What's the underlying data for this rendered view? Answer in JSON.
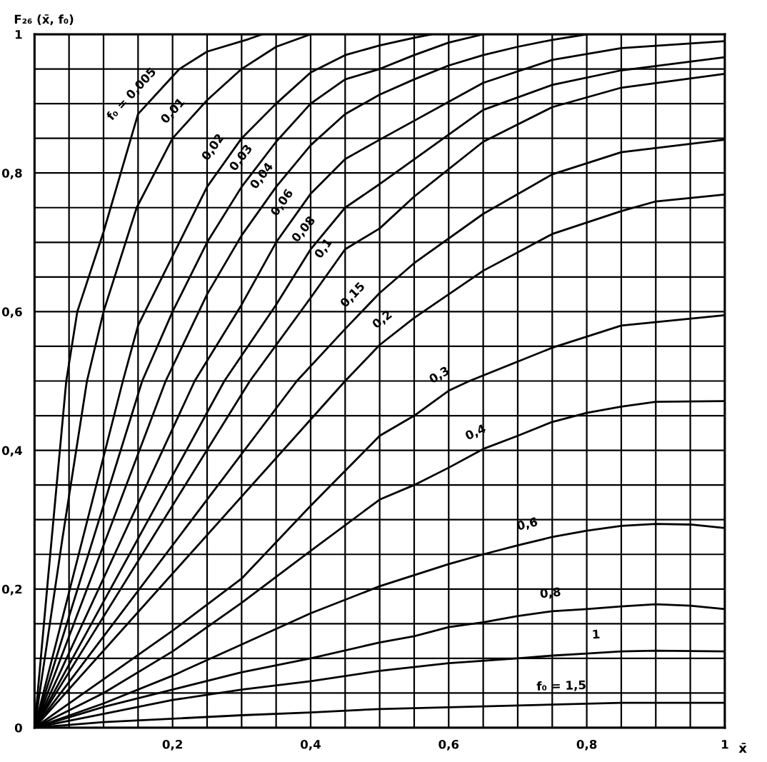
{
  "chart_data": {
    "type": "line",
    "xlabel": "x̄",
    "ylabel": "F₂₆ (x̄, f₀)",
    "xlim": [
      0,
      1
    ],
    "ylim": [
      0,
      1
    ],
    "xticks": [
      {
        "value": 0,
        "label": null
      },
      {
        "value": 0.05,
        "label": null
      },
      {
        "value": 0.1,
        "label": null
      },
      {
        "value": 0.15,
        "label": null
      },
      {
        "value": 0.2,
        "label": "0,2"
      },
      {
        "value": 0.25,
        "label": null
      },
      {
        "value": 0.3,
        "label": null
      },
      {
        "value": 0.35,
        "label": null
      },
      {
        "value": 0.4,
        "label": "0,4"
      },
      {
        "value": 0.45,
        "label": null
      },
      {
        "value": 0.5,
        "label": null
      },
      {
        "value": 0.55,
        "label": null
      },
      {
        "value": 0.6,
        "label": "0,6"
      },
      {
        "value": 0.65,
        "label": null
      },
      {
        "value": 0.7,
        "label": null
      },
      {
        "value": 0.75,
        "label": null
      },
      {
        "value": 0.8,
        "label": "0,8"
      },
      {
        "value": 0.85,
        "label": null
      },
      {
        "value": 0.9,
        "label": null
      },
      {
        "value": 0.95,
        "label": null
      },
      1
    ],
    "yticks": [
      0,
      {
        "value": 0.05,
        "label": null
      },
      {
        "value": 0.1,
        "label": null
      },
      {
        "value": 0.15,
        "label": null
      },
      {
        "value": 0.2,
        "label": "0,2"
      },
      {
        "value": 0.25,
        "label": null
      },
      {
        "value": 0.3,
        "label": null
      },
      {
        "value": 0.35,
        "label": null
      },
      {
        "value": 0.4,
        "label": "0,4"
      },
      {
        "value": 0.45,
        "label": null
      },
      {
        "value": 0.5,
        "label": null
      },
      {
        "value": 0.55,
        "label": null
      },
      {
        "value": 0.6,
        "label": "0,6"
      },
      {
        "value": 0.65,
        "label": null
      },
      {
        "value": 0.7,
        "label": null
      },
      {
        "value": 0.75,
        "label": null
      },
      {
        "value": 0.8,
        "label": "0,8"
      },
      {
        "value": 0.85,
        "label": null
      },
      {
        "value": 0.9,
        "label": null
      },
      {
        "value": 0.95,
        "label": null
      },
      1
    ],
    "grid": true,
    "marker": "none",
    "line_style": "solid",
    "series": [
      {
        "color": "#000000",
        "x": [
          0,
          0.02,
          0.046,
          0.062,
          0.1,
          0.125,
          0.15,
          0.21,
          0.25,
          0.31,
          0.33
        ],
        "values": [
          0,
          0.22,
          0.5,
          0.6,
          0.715,
          0.8,
          0.885,
          0.95,
          0.975,
          0.993,
          1
        ]
      },
      {
        "color": "#000000",
        "x": [
          0,
          0.04,
          0.076,
          0.1,
          0.148,
          0.2,
          0.25,
          0.3,
          0.35,
          0.4
        ],
        "values": [
          0,
          0.27,
          0.5,
          0.6,
          0.75,
          0.85,
          0.905,
          0.95,
          0.982,
          1
        ]
      },
      {
        "color": "#000000",
        "x": [
          0,
          0.128,
          0.15,
          0.2,
          0.25,
          0.3,
          0.35,
          0.4,
          0.45,
          0.5,
          0.55,
          0.575
        ],
        "values": [
          0,
          0.5,
          0.58,
          0.68,
          0.78,
          0.85,
          0.9,
          0.945,
          0.97,
          0.984,
          0.995,
          1
        ]
      },
      {
        "color": "#000000",
        "x": [
          0,
          0.156,
          0.2,
          0.25,
          0.3,
          0.35,
          0.4,
          0.45,
          0.5,
          0.55,
          0.6,
          0.65
        ],
        "values": [
          0,
          0.5,
          0.6,
          0.7,
          0.78,
          0.845,
          0.9,
          0.935,
          0.95,
          0.97,
          0.988,
          1
        ]
      },
      {
        "color": "#000000",
        "x": [
          0,
          0.19,
          0.25,
          0.3,
          0.35,
          0.4,
          0.45,
          0.5,
          0.55,
          0.6,
          0.65,
          0.7,
          0.75,
          0.8
        ],
        "values": [
          0,
          0.5,
          0.625,
          0.71,
          0.78,
          0.84,
          0.885,
          0.913,
          0.935,
          0.955,
          0.97,
          0.982,
          0.992,
          1
        ]
      },
      {
        "color": "#000000",
        "x": [
          0,
          0.232,
          0.3,
          0.35,
          0.4,
          0.45,
          0.5,
          0.65,
          0.75,
          0.85,
          1
        ],
        "values": [
          0,
          0.5,
          0.61,
          0.7,
          0.77,
          0.82,
          0.848,
          0.93,
          0.963,
          0.98,
          0.99
        ]
      },
      {
        "color": "#000000",
        "x": [
          0,
          0.275,
          0.35,
          0.4,
          0.45,
          0.5,
          0.65,
          0.75,
          0.85,
          1
        ],
        "values": [
          0,
          0.5,
          0.61,
          0.69,
          0.75,
          0.784,
          0.891,
          0.927,
          0.948,
          0.967
        ]
      },
      {
        "color": "#000000",
        "x": [
          0,
          0.312,
          0.4,
          0.45,
          0.5,
          0.55,
          0.65,
          0.75,
          0.85,
          1
        ],
        "values": [
          0,
          0.5,
          0.62,
          0.69,
          0.72,
          0.766,
          0.845,
          0.895,
          0.923,
          0.943
        ]
      },
      {
        "color": "#000000",
        "x": [
          0,
          0.38,
          0.45,
          0.5,
          0.55,
          0.65,
          0.75,
          0.85,
          1
        ],
        "values": [
          0,
          0.5,
          0.575,
          0.627,
          0.67,
          0.741,
          0.798,
          0.83,
          0.848
        ]
      },
      {
        "color": "#000000",
        "x": [
          0,
          0.45,
          0.5,
          0.55,
          0.65,
          0.75,
          0.85,
          0.9,
          1
        ],
        "values": [
          0,
          0.5,
          0.552,
          0.591,
          0.659,
          0.712,
          0.745,
          0.759,
          0.769
        ]
      },
      {
        "color": "#000000",
        "x": [
          0,
          0.1,
          0.2,
          0.3,
          0.4,
          0.5,
          0.55,
          0.6,
          0.63,
          0.75,
          0.85,
          1
        ],
        "values": [
          0,
          0.07,
          0.14,
          0.215,
          0.32,
          0.421,
          0.45,
          0.486,
          0.5,
          0.548,
          0.58,
          0.595
        ]
      },
      {
        "color": "#000000",
        "x": [
          0,
          0.1,
          0.2,
          0.3,
          0.4,
          0.5,
          0.55,
          0.6,
          0.65,
          0.7,
          0.75,
          0.8,
          0.85,
          0.9,
          1
        ],
        "values": [
          0,
          0.05,
          0.11,
          0.18,
          0.255,
          0.329,
          0.35,
          0.375,
          0.402,
          0.421,
          0.441,
          0.454,
          0.463,
          0.47,
          0.471
        ]
      },
      {
        "color": "#000000",
        "x": [
          0,
          0.1,
          0.2,
          0.3,
          0.4,
          0.5,
          0.55,
          0.6,
          0.65,
          0.7,
          0.75,
          0.8,
          0.85,
          0.9,
          0.95,
          1
        ],
        "values": [
          0,
          0.035,
          0.075,
          0.12,
          0.165,
          0.204,
          0.22,
          0.236,
          0.25,
          0.263,
          0.275,
          0.284,
          0.291,
          0.294,
          0.293,
          0.288
        ]
      },
      {
        "color": "#000000",
        "x": [
          0,
          0.1,
          0.2,
          0.3,
          0.4,
          0.5,
          0.55,
          0.6,
          0.65,
          0.7,
          0.75,
          0.8,
          0.85,
          0.9,
          0.95,
          1
        ],
        "values": [
          0,
          0.03,
          0.055,
          0.08,
          0.1,
          0.123,
          0.132,
          0.145,
          0.152,
          0.161,
          0.168,
          0.171,
          0.175,
          0.178,
          0.176,
          0.171
        ]
      },
      {
        "color": "#000000",
        "x": [
          0,
          0.1,
          0.2,
          0.3,
          0.4,
          0.5,
          0.6,
          0.7,
          0.75,
          0.8,
          0.85,
          0.9,
          1
        ],
        "values": [
          0,
          0.02,
          0.04,
          0.055,
          0.067,
          0.082,
          0.093,
          0.1,
          0.104,
          0.107,
          0.11,
          0.111,
          0.11
        ]
      },
      {
        "color": "#000000",
        "x": [
          0,
          0.1,
          0.2,
          0.3,
          0.4,
          0.5,
          0.7,
          0.85,
          1
        ],
        "values": [
          0,
          0.008,
          0.013,
          0.018,
          0.022,
          0.027,
          0.032,
          0.036,
          0.036
        ]
      }
    ],
    "annotations": [
      {
        "text": "f₀ = 0,005",
        "x": 0.16,
        "y": 0.896
      },
      {
        "text": "0,01",
        "x": 0.22,
        "y": 0.872
      },
      {
        "text": "0,02",
        "x": 0.28,
        "y": 0.822
      },
      {
        "text": "0,03",
        "x": 0.32,
        "y": 0.806
      },
      {
        "text": "0,04",
        "x": 0.35,
        "y": 0.78
      },
      {
        "text": "0,06",
        "x": 0.38,
        "y": 0.742
      },
      {
        "text": "0,08",
        "x": 0.41,
        "y": 0.702
      },
      {
        "text": "0,1",
        "x": 0.44,
        "y": 0.676
      },
      {
        "text": "0,15",
        "x": 0.48,
        "y": 0.606
      },
      {
        "text": "0,2",
        "x": 0.52,
        "y": 0.568
      },
      {
        "text": "0,3",
        "x": 0.6,
        "y": 0.486
      },
      {
        "text": "0,4",
        "x": 0.65,
        "y": 0.402
      },
      {
        "text": "0,6",
        "x": 0.72,
        "y": 0.268
      },
      {
        "text": "0,8",
        "x": 0.75,
        "y": 0.168
      },
      {
        "text": "1",
        "x": 0.815,
        "y": 0.108
      },
      {
        "text": "f₀ = 1,5",
        "x": 0.764,
        "y": 0.034
      }
    ]
  }
}
